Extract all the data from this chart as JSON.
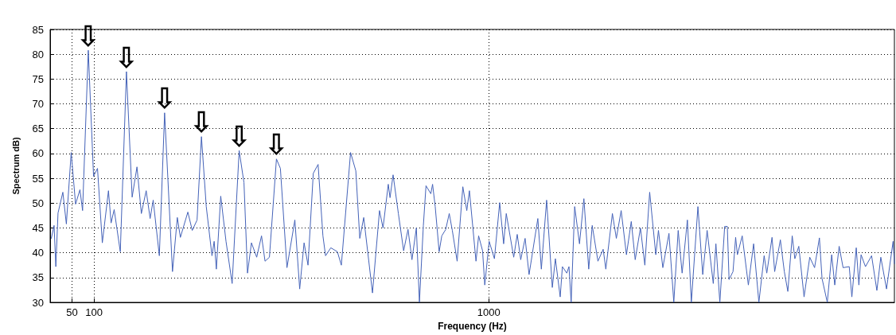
{
  "chart_data": {
    "type": "line",
    "xlabel": "Frequency (Hz)",
    "ylabel": "Spectrum dB)",
    "x": [
      2.7,
      9,
      13,
      18,
      29,
      37,
      48,
      58,
      68,
      74,
      87,
      99,
      108,
      119,
      133,
      139,
      146,
      160,
      174,
      187,
      198,
      208,
      219,
      228,
      235,
      249,
      261,
      279,
      290,
      297,
      314,
      324,
      335,
      345,
      356,
      369,
      374,
      379,
      389,
      401,
      415,
      431,
      442,
      450,
      459,
      471,
      482,
      490,
      500,
      516,
      525,
      540,
      558,
      569,
      579,
      588,
      600,
      611,
      622,
      628,
      640,
      655,
      664,
      685,
      697,
      706,
      715,
      735,
      751,
      759,
      771,
      775,
      782,
      794,
      806,
      816,
      825,
      835,
      842,
      851,
      857,
      868,
      872,
      878,
      887,
      893,
      902,
      910,
      917,
      928,
      941,
      950,
      956,
      971,
      977,
      986,
      991,
      1001,
      1013,
      1025,
      1034,
      1040,
      1057,
      1065,
      1073,
      1083,
      1092,
      1112,
      1120,
      1132,
      1145,
      1152,
      1163,
      1168,
      1178,
      1183,
      1188,
      1196,
      1207,
      1217,
      1228,
      1236,
      1249,
      1261,
      1267,
      1282,
      1291,
      1302,
      1314,
      1325,
      1334,
      1346,
      1356,
      1367,
      1381,
      1387,
      1397,
      1411,
      1422,
      1432,
      1441,
      1453,
      1462,
      1477,
      1488,
      1498,
      1512,
      1518,
      1527,
      1538,
      1544,
      1548,
      1557,
      1563,
      1567,
      1578,
      1592,
      1604,
      1616,
      1628,
      1634,
      1646,
      1652,
      1665,
      1674,
      1682,
      1692,
      1698,
      1707,
      1719,
      1732,
      1743,
      1754,
      1760,
      1772,
      1782,
      1789,
      1799,
      1808,
      1822,
      1828,
      1838,
      1844,
      1849,
      1859,
      1873,
      1885,
      1894,
      1907,
      1922,
      1925
    ],
    "series": [
      {
        "color": "#4462b8",
        "values": [
          42.9,
          45.5,
          37.2,
          48,
          52.2,
          45.8,
          60.2,
          49.8,
          52.7,
          48.5,
          80.8,
          55.4,
          57,
          42,
          52.5,
          46,
          48.7,
          40.2,
          76.5,
          51.2,
          57.3,
          47.9,
          52.5,
          46.9,
          50.6,
          39.4,
          68.2,
          36.2,
          47.1,
          43.1,
          48.2,
          44.5,
          46.6,
          63.4,
          49.3,
          39.4,
          42.3,
          36.7,
          51.4,
          42.3,
          33.8,
          60.6,
          54.1,
          35.9,
          42,
          39.1,
          43.4,
          38.3,
          39.1,
          58.9,
          57,
          37,
          46.6,
          32.7,
          42,
          37.5,
          56,
          57.8,
          43.4,
          39.4,
          41,
          40.2,
          37.5,
          60.2,
          56.5,
          42.9,
          47.1,
          31.9,
          48.5,
          45,
          53.8,
          51.1,
          55.7,
          47.9,
          40.4,
          44.7,
          38.6,
          45,
          30,
          45.5,
          53.5,
          51.9,
          53.8,
          49.3,
          40.2,
          43.4,
          44.7,
          47.9,
          44.5,
          38.3,
          53.3,
          48.5,
          52.5,
          38.3,
          43.4,
          40.4,
          33.5,
          42.3,
          38.8,
          50.1,
          41.8,
          47.9,
          39.1,
          43.7,
          38.6,
          42.9,
          35.6,
          46.9,
          36.7,
          50.6,
          33,
          38.8,
          31.1,
          37.2,
          35.9,
          37.2,
          30,
          49.3,
          41.8,
          50.9,
          36.7,
          45.5,
          38.3,
          40.7,
          36.7,
          47.9,
          42.9,
          48.5,
          39.6,
          46.3,
          38.6,
          45,
          37.5,
          52.2,
          39.6,
          44.5,
          37,
          43.9,
          30,
          44.5,
          35.9,
          46.6,
          30,
          49.3,
          35.6,
          44.5,
          33.8,
          41.8,
          30,
          45.3,
          45.3,
          34.6,
          36.2,
          43.1,
          39.6,
          43.4,
          33.5,
          41.8,
          30,
          39.4,
          35.9,
          43.1,
          36.2,
          42.6,
          36.2,
          32.2,
          43.4,
          38.8,
          41.3,
          31.1,
          39.1,
          37,
          43,
          34.8,
          30,
          39.6,
          33.5,
          41.3,
          37,
          37.2,
          31.1,
          41,
          33.5,
          39.6,
          37.2,
          39.4,
          32.4,
          39.1,
          32.7,
          42.3,
          37.8
        ]
      }
    ],
    "annotations": [
      {
        "text": "⇩",
        "x": 87,
        "y": 80.8
      },
      {
        "text": "⇩",
        "x": 174,
        "y": 76.5
      },
      {
        "text": "⇩",
        "x": 261,
        "y": 68.2
      },
      {
        "text": "⇩",
        "x": 345,
        "y": 63.4
      },
      {
        "text": "⇩",
        "x": 431,
        "y": 60.6
      },
      {
        "text": "⇩",
        "x": 516,
        "y": 58.9
      }
    ],
    "xlim": [
      0,
      1925
    ],
    "xticks": [
      50,
      100,
      1000
    ],
    "ylim": [
      30,
      85
    ],
    "yticks": [
      30,
      35,
      40,
      45,
      50,
      55,
      60,
      65,
      70,
      75,
      80,
      85
    ],
    "grid": true,
    "marker": "none",
    "line_style": "solid"
  }
}
